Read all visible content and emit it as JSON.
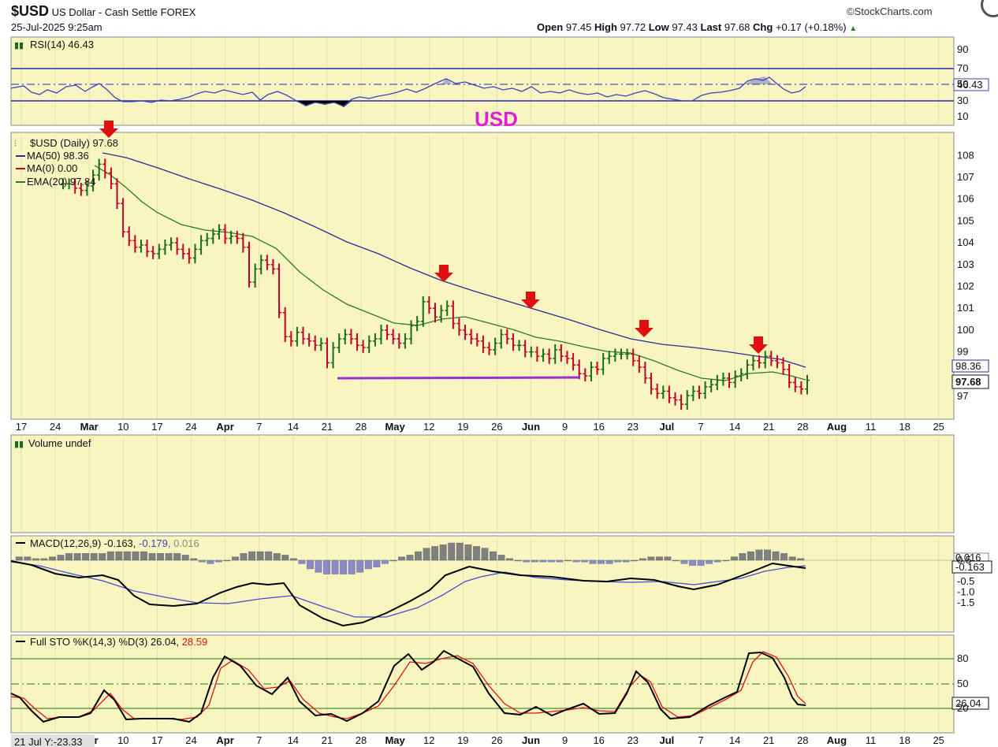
{
  "header": {
    "symbol": "$USD",
    "name": "US Dollar - Cash Settle",
    "exchange": "FOREX",
    "date": "25-Jul-2025 9:25am",
    "copyright": "©StockCharts.com",
    "open_label": "Open",
    "open": "97.45",
    "high_label": "High",
    "high": "97.72",
    "low_label": "Low",
    "low": "97.43",
    "last_label": "Last",
    "last": "97.68",
    "chg_label": "Chg",
    "chg": "+0.17 (+0.18%)"
  },
  "annotation": {
    "text": "USD",
    "color": "#e020d8"
  },
  "colors": {
    "panel_bg": "#f8f5c0",
    "up": "#1a6b1a",
    "down": "#c4002a",
    "ma50": "#2b2b9a",
    "ema20": "#2a7a2a",
    "arrow": "#e01010",
    "support": "#9a30d0",
    "rsi": "#4040c0",
    "macd": "#000000",
    "signal": "#4a4ad8",
    "hist": "#8a8aca",
    "sto_k": "#000000",
    "sto_d": "#e01010"
  },
  "rsi": {
    "legend": "RSI(14) 46.43",
    "ticks": [
      "90",
      "70",
      "50",
      "30",
      "10"
    ],
    "value_badge": "46.43"
  },
  "price": {
    "legend_title": "$USD (Daily) 97.68",
    "legend_ma50": "MA(50) 98.36",
    "legend_ma0": "MA(0) 0.00",
    "legend_ema20": "EMA(20) 97.84",
    "ticks": [
      "108",
      "107",
      "106",
      "105",
      "104",
      "103",
      "102",
      "101",
      "100",
      "99",
      "97"
    ],
    "badge_ma50": "98.36",
    "badge_last": "97.68"
  },
  "volume": {
    "legend": "Volume undef"
  },
  "macd": {
    "legend_prefix": "MACD(12,26,9) -0.163,",
    "legend_signal": "-0.179,",
    "legend_hist": "0.016",
    "ticks": [
      "0.5",
      "-0.5",
      "-1.0",
      "-1.5"
    ],
    "badge_hist": "0.016",
    "badge_macd": "-0.163"
  },
  "sto": {
    "legend_prefix": "Full STO %K(14,3) %D(3) 26.04,",
    "legend_d": "28.59",
    "ticks": [
      "80",
      "50",
      "20"
    ],
    "badge": "26.04",
    "corner_label": "21 Jul Y:-23.33"
  },
  "x_axis": {
    "labels": [
      "17",
      "24",
      "Mar",
      "10",
      "17",
      "24",
      "Apr",
      "7",
      "14",
      "21",
      "28",
      "May",
      "12",
      "19",
      "26",
      "Jun",
      "9",
      "16",
      "23",
      "Jul",
      "7",
      "14",
      "21",
      "28",
      "Aug",
      "11",
      "18",
      "25"
    ],
    "bold": [
      "Mar",
      "Apr",
      "May",
      "Jun",
      "Jul",
      "Aug"
    ]
  },
  "chart_data": {
    "type": "line",
    "symbol": "$USD",
    "interval": "Daily",
    "date_range": [
      "2025-02-14",
      "2025-07-25"
    ],
    "price_range": [
      96.5,
      108.5
    ],
    "closes": [
      106.7,
      106.7,
      106.5,
      106.4,
      106.6,
      107.1,
      107.6,
      107.2,
      106.7,
      105.8,
      104.5,
      104.1,
      103.8,
      103.9,
      103.6,
      103.5,
      103.7,
      103.9,
      104.0,
      103.7,
      103.5,
      103.3,
      103.7,
      104.1,
      104.2,
      104.4,
      104.6,
      104.2,
      104.3,
      104.2,
      103.8,
      102.2,
      102.8,
      103.2,
      103.0,
      102.8,
      100.8,
      99.7,
      99.5,
      99.9,
      99.6,
      99.5,
      99.3,
      99.4,
      98.5,
      99.2,
      99.6,
      99.8,
      99.6,
      99.3,
      99.2,
      99.5,
      99.6,
      100.0,
      99.8,
      99.6,
      99.4,
      99.6,
      100.2,
      100.4,
      101.3,
      101.0,
      100.6,
      100.9,
      101.1,
      100.3,
      100.0,
      99.8,
      99.6,
      99.5,
      99.2,
      99.1,
      99.4,
      99.8,
      99.6,
      99.3,
      99.3,
      99.0,
      99.0,
      98.8,
      98.9,
      98.7,
      99.1,
      98.8,
      98.7,
      98.4,
      98.0,
      97.9,
      98.3,
      98.2,
      98.7,
      98.8,
      98.9,
      98.9,
      98.9,
      98.6,
      98.3,
      97.8,
      97.3,
      97.1,
      97.2,
      96.9,
      96.8,
      96.6,
      97.0,
      97.2,
      97.1,
      97.4,
      97.5,
      97.7,
      97.8,
      97.6,
      97.9,
      98.0,
      98.4,
      98.6,
      98.5,
      98.8,
      98.6,
      98.5,
      98.2,
      97.6,
      97.4,
      97.3,
      97.7
    ],
    "series": [
      {
        "name": "MA(50)",
        "values_at_points": {
          "2025-02-28": 108.0,
          "2025-04-01": 105.7,
          "2025-05-01": 103.1,
          "2025-06-02": 100.6,
          "2025-07-01": 98.9,
          "2025-07-25": 98.36
        }
      },
      {
        "name": "EMA(20)",
        "values_at_points": {
          "2025-02-28": 107.2,
          "2025-04-01": 104.3,
          "2025-04-21": 100.8,
          "2025-05-12": 100.2,
          "2025-06-02": 99.5,
          "2025-07-01": 97.9,
          "2025-07-25": 97.84
        }
      }
    ],
    "resistance_arrows": [
      "2025-02-28",
      "2025-05-12",
      "2025-05-29",
      "2025-06-23",
      "2025-07-17"
    ],
    "support_line": {
      "value": 98.0,
      "from": "2025-04-21",
      "to": "2025-06-13"
    },
    "rsi_latest": 46.43,
    "macd_latest": {
      "macd": -0.163,
      "signal": -0.179,
      "histogram": 0.016
    },
    "stochastic_latest": {
      "k": 26.04,
      "d": 28.59
    },
    "xlabel": "",
    "ylabel": ""
  }
}
